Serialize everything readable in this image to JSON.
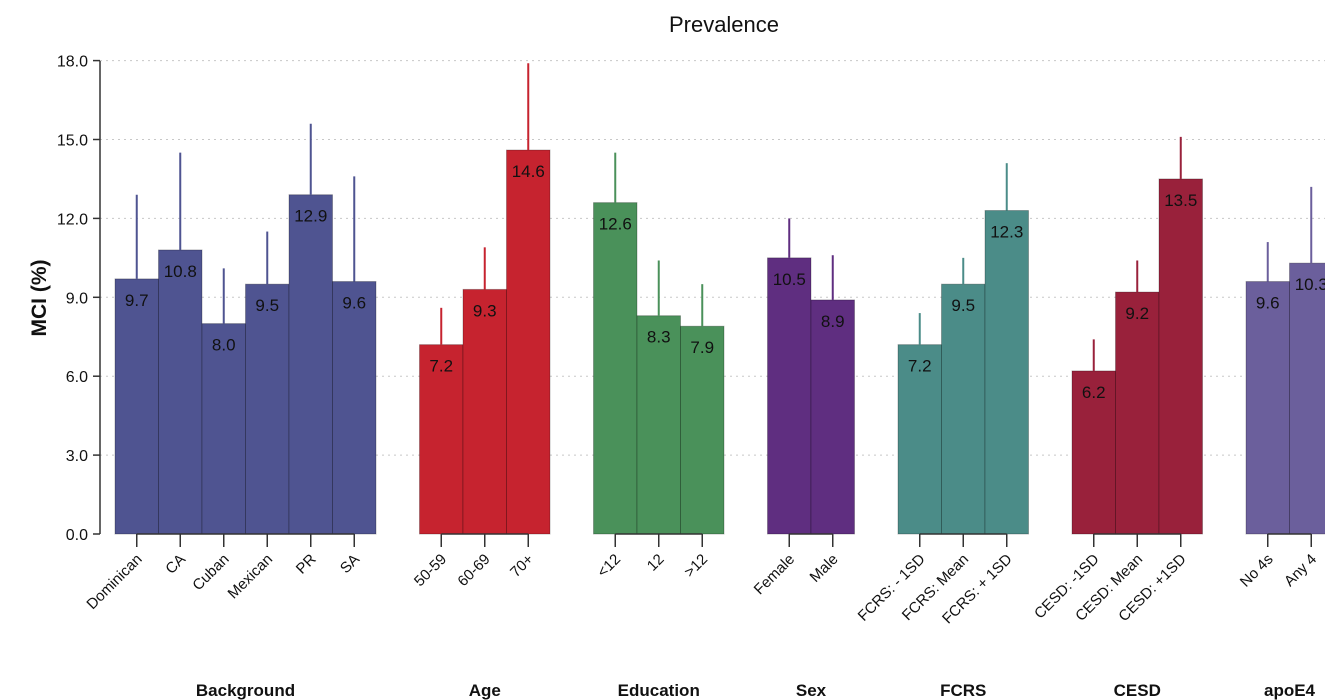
{
  "chart_data": {
    "type": "bar",
    "title": "Prevalence",
    "ylabel": "MCI (%)",
    "ylim": [
      0,
      18
    ],
    "yticks": [
      "0.0",
      "3.0",
      "6.0",
      "9.0",
      "12.0",
      "15.0",
      "18.0"
    ],
    "grid": true,
    "groups": [
      {
        "name": "Background",
        "color": "#4f5491",
        "categories": [
          "Dominican",
          "CA",
          "Cuban",
          "Mexican",
          "PR",
          "SA"
        ],
        "values": [
          9.7,
          10.8,
          8.0,
          9.5,
          12.9,
          9.6
        ],
        "labels": [
          "9.7",
          "10.8",
          "8.0",
          "9.5",
          "12.9",
          "9.6"
        ],
        "upper": [
          12.9,
          14.5,
          10.1,
          11.5,
          15.6,
          13.6
        ]
      },
      {
        "name": "Age",
        "color": "#c6232f",
        "categories": [
          "50-59",
          "60-69",
          "70+"
        ],
        "values": [
          7.2,
          9.3,
          14.6
        ],
        "labels": [
          "7.2",
          "9.3",
          "14.6"
        ],
        "upper": [
          8.6,
          10.9,
          17.9
        ]
      },
      {
        "name": "Education",
        "color": "#4a915a",
        "categories": [
          "<12",
          "12",
          ">12"
        ],
        "values": [
          12.6,
          8.3,
          7.9
        ],
        "labels": [
          "12.6",
          "8.3",
          "7.9"
        ],
        "upper": [
          14.5,
          10.4,
          9.5
        ]
      },
      {
        "name": "Sex",
        "color": "#5f2e80",
        "categories": [
          "Female",
          "Male"
        ],
        "values": [
          10.5,
          8.9
        ],
        "labels": [
          "10.5",
          "8.9"
        ],
        "upper": [
          12.0,
          10.6
        ]
      },
      {
        "name": "FCRS",
        "color": "#4b8c88",
        "categories": [
          "FCRS: - 1SD",
          "FCRS: Mean",
          "FCRS: + 1SD"
        ],
        "values": [
          7.2,
          9.5,
          12.3
        ],
        "labels": [
          "7.2",
          "9.5",
          "12.3"
        ],
        "upper": [
          8.4,
          10.5,
          14.1
        ]
      },
      {
        "name": "CESD",
        "color": "#99213b",
        "categories": [
          "CESD: -1SD",
          "CESD: Mean",
          "CESD: +1SD"
        ],
        "values": [
          6.2,
          9.2,
          13.5
        ],
        "labels": [
          "6.2",
          "9.2",
          "13.5"
        ],
        "upper": [
          7.4,
          10.4,
          15.1
        ]
      },
      {
        "name": "apoE4",
        "color": "#6b5f9c",
        "categories": [
          "No 4s",
          "Any 4"
        ],
        "values": [
          9.6,
          10.3
        ],
        "labels": [
          "9.6",
          "10.3"
        ],
        "upper": [
          11.1,
          13.2
        ]
      }
    ]
  }
}
